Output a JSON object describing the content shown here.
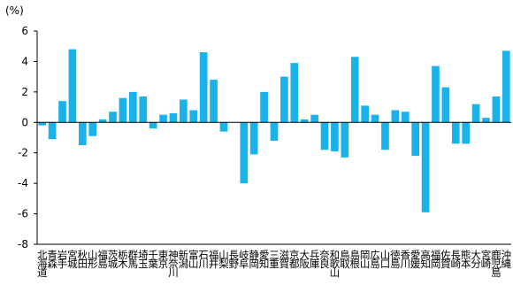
{
  "chart_data": {
    "type": "bar",
    "y_label": "(%)",
    "categories": [
      "北海道",
      "青森",
      "岩手",
      "宮城",
      "秋田",
      "山形",
      "福島",
      "茨城",
      "栃木",
      "群馬",
      "埼玉",
      "千葉",
      "東京",
      "神奈川",
      "新潟",
      "富山",
      "石川",
      "福井",
      "山梨",
      "長野",
      "岐阜",
      "静岡",
      "愛知",
      "三重",
      "滋賀",
      "京都",
      "大阪",
      "兵庫",
      "奈良",
      "和歌山",
      "鳥取",
      "島根",
      "岡山",
      "広島",
      "山口",
      "徳島",
      "香川",
      "愛媛",
      "高知",
      "福岡",
      "佐賀",
      "長崎",
      "熊本",
      "大分",
      "宮崎",
      "鹿児島",
      "沖縄"
    ],
    "values": [
      -0.2,
      -1.1,
      1.4,
      4.8,
      -1.5,
      -0.9,
      0.2,
      0.7,
      1.6,
      2.0,
      1.7,
      -0.4,
      0.5,
      0.6,
      1.5,
      0.8,
      4.6,
      2.8,
      -0.6,
      0,
      -4.0,
      -2.1,
      2.0,
      -1.2,
      3.0,
      3.9,
      0.2,
      0.5,
      -1.8,
      -1.9,
      -2.3,
      4.3,
      1.1,
      0.5,
      -1.8,
      0.8,
      0.7,
      -2.2,
      -5.9,
      3.7,
      2.3,
      -1.4,
      -1.4,
      1.2,
      0.3,
      1.7,
      4.7
    ],
    "color": "#1ab2ea",
    "ylim": [
      -8,
      6
    ],
    "yticks": [
      -8,
      -6,
      -4,
      -2,
      0,
      2,
      4,
      6
    ],
    "grid": false
  }
}
